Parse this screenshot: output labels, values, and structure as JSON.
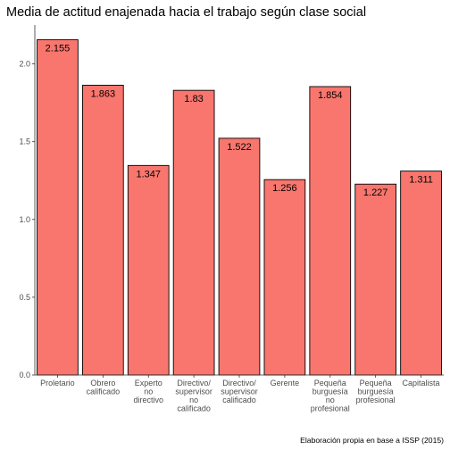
{
  "chart_data": {
    "type": "bar",
    "title": "Media de actitud enajenada hacia el trabajo según clase social",
    "caption": "Elaboración propia en base a ISSP (2015)",
    "xlabel": "",
    "ylabel": "",
    "ylim": [
      0,
      2.25
    ],
    "yticks": [
      0.0,
      0.5,
      1.0,
      1.5,
      2.0
    ],
    "ytick_labels": [
      "0.0",
      "0.5",
      "1.0",
      "1.5",
      "2.0"
    ],
    "grid": false,
    "legend": "none",
    "categories": [
      [
        "Proletario"
      ],
      [
        "Obrero",
        "calificado"
      ],
      [
        "Experto",
        "no",
        "directivo"
      ],
      [
        "Directivo/",
        "supervisor",
        "no",
        "calificado"
      ],
      [
        "Directivo/",
        "supervisor",
        "calificado"
      ],
      [
        "Gerente"
      ],
      [
        "Pequeña",
        "burguesía",
        "no",
        "profesional"
      ],
      [
        "Pequeña",
        "burguesía",
        "profesional"
      ],
      [
        "Capitalista"
      ]
    ],
    "values": [
      2.155,
      1.863,
      1.347,
      1.83,
      1.522,
      1.256,
      1.854,
      1.227,
      1.311
    ],
    "value_labels": [
      "2.155",
      "1.863",
      "1.347",
      "1.83",
      "1.522",
      "1.256",
      "1.854",
      "1.227",
      "1.311"
    ],
    "colors": {
      "bar_fill": "#F8766D",
      "bar_stroke": "#000000",
      "axis": "#333333"
    }
  }
}
